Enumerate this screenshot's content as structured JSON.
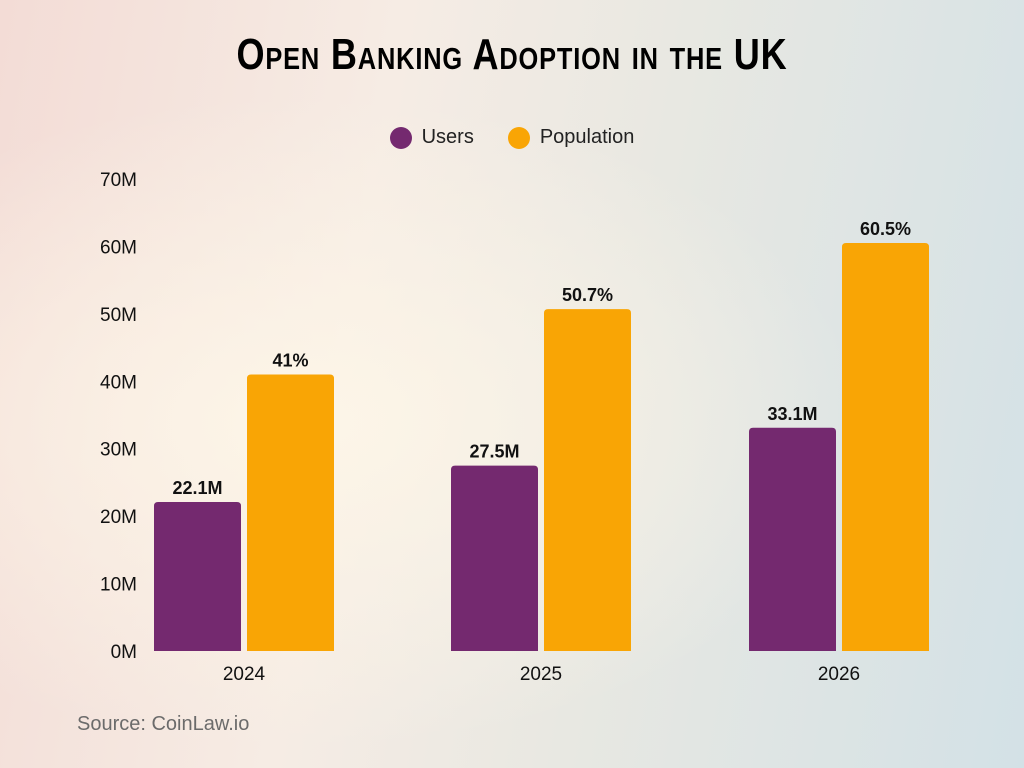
{
  "chart_data": {
    "type": "bar",
    "title": "Open Banking Adoption in the UK",
    "categories": [
      "2024",
      "2025",
      "2026"
    ],
    "series": [
      {
        "name": "Users",
        "values": [
          22.1,
          27.5,
          33.1
        ],
        "labels": [
          "22.1M",
          "27.5M",
          "33.1M"
        ],
        "color": "#74296f"
      },
      {
        "name": "Population",
        "values": [
          41,
          50.7,
          60.5
        ],
        "labels": [
          "41%",
          "50.7%",
          "60.5%"
        ],
        "color": "#f9a505"
      }
    ],
    "yticks": [
      "0M",
      "10M",
      "20M",
      "30M",
      "40M",
      "50M",
      "60M",
      "70M"
    ],
    "ylim": [
      0,
      70
    ],
    "grid": false,
    "legend": "top-center",
    "source": "Source: CoinLaw.io"
  }
}
